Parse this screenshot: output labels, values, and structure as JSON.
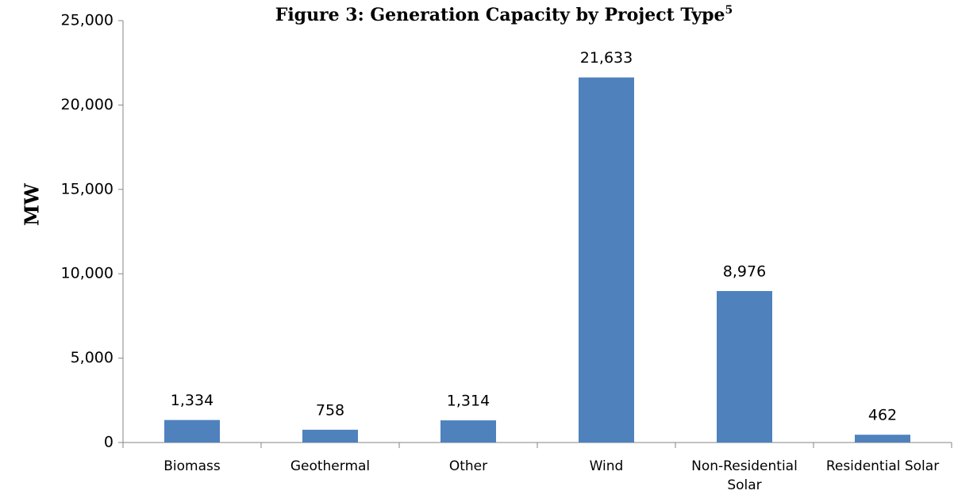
{
  "chart_data": {
    "type": "bar",
    "title": "Figure 3: Generation Capacity by Project Type",
    "title_superscript": "5",
    "ylabel": "MW",
    "categories": [
      "Biomass",
      "Geothermal",
      "Other",
      "Wind",
      "Non-Residential Solar",
      "Residential Solar"
    ],
    "values": [
      1334,
      758,
      1314,
      21633,
      8976,
      462
    ],
    "value_labels": [
      "1,334",
      "758",
      "1,314",
      "21,633",
      "8,976",
      "462"
    ],
    "color": "#4f81bd",
    "ylim": [
      0,
      25000
    ],
    "yticks": [
      0,
      {
        "value": 5000,
        "label": "5,000"
      },
      {
        "value": 10000,
        "label": "10,000"
      },
      {
        "value": 15000,
        "label": "15,000"
      },
      {
        "value": 20000,
        "label": "20,000"
      },
      {
        "value": 25000,
        "label": "25,000"
      }
    ],
    "grid": false
  }
}
